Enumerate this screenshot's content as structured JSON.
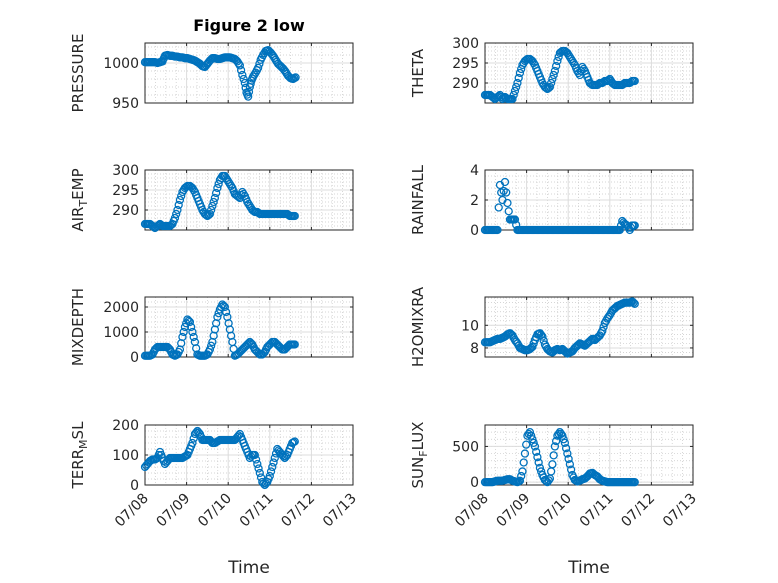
{
  "figure": {
    "title": "Figure 2 low"
  },
  "colors": {
    "series": "#0072BD",
    "axis": "#262626"
  },
  "chart_data": [
    {
      "type": "scatter",
      "title": "Figure 2 low",
      "ylabel": "PRESSURE",
      "ylim": [
        950,
        1025
      ],
      "yticks": [
        950,
        1000
      ],
      "ytick_labels": [
        "950",
        "1000"
      ],
      "xlim": [
        0,
        5
      ],
      "xticks": [
        0,
        1,
        2,
        3,
        4,
        5
      ],
      "xtick_labels": [
        "07/08",
        "07/09",
        "07/10",
        "07/11",
        "07/12",
        "07/13"
      ],
      "show_xticklabels": false,
      "xlabel": "",
      "x": [
        0,
        0.06,
        0.12,
        0.18,
        0.24,
        0.3,
        0.36,
        0.42,
        0.48,
        0.54,
        0.6,
        0.66,
        0.72,
        0.78,
        0.84,
        0.9,
        0.96,
        1.02,
        1.08,
        1.14,
        1.2,
        1.26,
        1.32,
        1.38,
        1.44,
        1.5,
        1.56,
        1.62,
        1.68,
        1.74,
        1.8,
        1.86,
        1.92,
        1.98,
        2.04,
        2.1,
        2.16,
        2.22,
        2.28,
        2.34,
        2.4,
        2.44,
        2.48,
        2.52,
        2.56,
        2.6,
        2.66,
        2.72,
        2.78,
        2.84,
        2.9,
        2.96,
        3.02,
        3.08,
        3.14,
        3.2,
        3.26,
        3.32,
        3.38,
        3.44,
        3.5,
        3.56,
        3.62
      ],
      "y": [
        1001,
        1001,
        1001,
        1001,
        1001,
        1000,
        1001,
        1002,
        1009,
        1010,
        1009,
        1009,
        1008,
        1008,
        1007,
        1007,
        1006,
        1006,
        1005,
        1004,
        1003,
        1001,
        999,
        996,
        995,
        999,
        1003,
        1006,
        1006,
        1005,
        1005,
        1006,
        1007,
        1007,
        1007,
        1006,
        1005,
        1002,
        997,
        985,
        975,
        963,
        958,
        970,
        978,
        983,
        988,
        994,
        1004,
        1010,
        1015,
        1016,
        1013,
        1009,
        1004,
        999,
        996,
        993,
        989,
        984,
        981,
        980,
        982
      ]
    },
    {
      "type": "scatter",
      "ylabel": "THETA",
      "ylim": [
        285,
        300
      ],
      "yticks": [
        290,
        295,
        300
      ],
      "ytick_labels": [
        "290",
        "295",
        "300"
      ],
      "xlim": [
        0,
        5
      ],
      "xticks": [
        0,
        1,
        2,
        3,
        4,
        5
      ],
      "xtick_labels": [
        "07/08",
        "07/09",
        "07/10",
        "07/11",
        "07/12",
        "07/13"
      ],
      "show_xticklabels": false,
      "xlabel": "",
      "x": [
        0,
        0.06,
        0.12,
        0.18,
        0.24,
        0.3,
        0.36,
        0.42,
        0.48,
        0.54,
        0.6,
        0.66,
        0.72,
        0.78,
        0.84,
        0.9,
        0.96,
        1.02,
        1.08,
        1.14,
        1.2,
        1.26,
        1.32,
        1.38,
        1.44,
        1.5,
        1.56,
        1.62,
        1.68,
        1.74,
        1.8,
        1.86,
        1.92,
        1.98,
        2.04,
        2.1,
        2.16,
        2.22,
        2.28,
        2.34,
        2.4,
        2.46,
        2.52,
        2.58,
        2.64,
        2.7,
        2.76,
        2.82,
        2.88,
        2.94,
        3.0,
        3.06,
        3.12,
        3.18,
        3.24,
        3.3,
        3.36,
        3.42,
        3.48,
        3.54,
        3.6
      ],
      "y": [
        287,
        287,
        287,
        286.5,
        286,
        286.5,
        287,
        286,
        286.5,
        286,
        286,
        286,
        288,
        290,
        292.5,
        294.5,
        295.5,
        296,
        296,
        295.5,
        294.5,
        293,
        291.5,
        290,
        289,
        288.5,
        289,
        291,
        293,
        295.5,
        297.5,
        298,
        298,
        297.5,
        296.5,
        295.5,
        294.5,
        293,
        292,
        294,
        293,
        291.5,
        290,
        289.5,
        289.5,
        289.5,
        290,
        290,
        290.5,
        290.5,
        291,
        290,
        289.5,
        289.5,
        289.5,
        289.5,
        290,
        290,
        290,
        290.5,
        290.5
      ]
    },
    {
      "type": "scatter",
      "ylabel": "AIR_TEMP",
      "ylim": [
        285,
        300
      ],
      "yticks": [
        290,
        295,
        300
      ],
      "ytick_labels": [
        "290",
        "295",
        "300"
      ],
      "xlim": [
        0,
        5
      ],
      "xticks": [
        0,
        1,
        2,
        3,
        4,
        5
      ],
      "xtick_labels": [
        "07/08",
        "07/09",
        "07/10",
        "07/11",
        "07/12",
        "07/13"
      ],
      "show_xticklabels": false,
      "xlabel": "",
      "x": [
        0,
        0.06,
        0.12,
        0.18,
        0.24,
        0.3,
        0.36,
        0.42,
        0.48,
        0.54,
        0.6,
        0.66,
        0.72,
        0.78,
        0.84,
        0.9,
        0.96,
        1.02,
        1.08,
        1.14,
        1.2,
        1.26,
        1.32,
        1.38,
        1.44,
        1.5,
        1.56,
        1.62,
        1.68,
        1.74,
        1.8,
        1.86,
        1.92,
        1.98,
        2.04,
        2.1,
        2.16,
        2.22,
        2.28,
        2.34,
        2.4,
        2.46,
        2.52,
        2.58,
        2.64,
        2.7,
        2.76,
        2.82,
        2.88,
        2.94,
        3.0,
        3.06,
        3.12,
        3.18,
        3.24,
        3.3,
        3.36,
        3.42,
        3.48,
        3.54,
        3.6
      ],
      "y": [
        286.5,
        286.5,
        286.5,
        286,
        285.5,
        286,
        286.5,
        286,
        286,
        286,
        286,
        286.5,
        288,
        290,
        292.5,
        294.5,
        295.5,
        296,
        296,
        295.5,
        294.5,
        293,
        291.5,
        290,
        289,
        288.5,
        289,
        291,
        293,
        295.5,
        297.5,
        298.5,
        298.5,
        297.5,
        296.5,
        295.5,
        294,
        293.5,
        293,
        294.5,
        293.5,
        292,
        291,
        290,
        289.5,
        289.5,
        289,
        289,
        289,
        289,
        289,
        289,
        289,
        289,
        289,
        289,
        289,
        289,
        288.5,
        288.5,
        288.5
      ]
    },
    {
      "type": "scatter",
      "ylabel": "RAINFALL",
      "ylim": [
        0,
        4
      ],
      "yticks": [
        0,
        2,
        4
      ],
      "ytick_labels": [
        "0",
        "2",
        "4"
      ],
      "xlim": [
        0,
        5
      ],
      "xticks": [
        0,
        1,
        2,
        3,
        4,
        5
      ],
      "xtick_labels": [
        "07/08",
        "07/09",
        "07/10",
        "07/11",
        "07/12",
        "07/13"
      ],
      "show_xticklabels": false,
      "xlabel": "",
      "x": [
        0,
        0.06,
        0.12,
        0.18,
        0.24,
        0.3,
        0.36,
        0.42,
        0.48,
        0.54,
        0.6,
        0.66,
        0.72,
        0.78,
        0.84,
        0.9,
        0.96,
        1.02,
        1.08,
        1.14,
        1.2,
        1.26,
        1.32,
        1.38,
        1.44,
        1.5,
        1.56,
        1.62,
        1.68,
        1.74,
        1.8,
        1.86,
        1.92,
        1.98,
        2.04,
        2.1,
        2.16,
        2.22,
        2.28,
        2.34,
        2.4,
        2.46,
        2.52,
        2.58,
        2.64,
        2.7,
        2.76,
        2.82,
        2.88,
        2.94,
        3.0,
        3.06,
        3.12,
        3.18,
        3.24,
        3.3,
        3.36,
        3.42,
        3.48,
        3.54,
        3.6
      ],
      "y": [
        0,
        0,
        0,
        0,
        0,
        0,
        3.0,
        2.0,
        3.2,
        1.8,
        0.7,
        0.7,
        0.7,
        0,
        0,
        0,
        0,
        0,
        0,
        0,
        0,
        0,
        0,
        0,
        0,
        0,
        0,
        0,
        0,
        0,
        0,
        0,
        0,
        0,
        0,
        0,
        0,
        0,
        0,
        0,
        0,
        0,
        0,
        0,
        0,
        0,
        0,
        0,
        0,
        0,
        0,
        0,
        0,
        0,
        0,
        0.6,
        0.4,
        0.3,
        0,
        0.3,
        0.3
      ]
    },
    {
      "type": "scatter",
      "ylabel": "MIXDEPTH",
      "ylim": [
        0,
        2400
      ],
      "yticks": [
        0,
        1000,
        2000
      ],
      "ytick_labels": [
        "0",
        "1000",
        "2000"
      ],
      "xlim": [
        0,
        5
      ],
      "xticks": [
        0,
        1,
        2,
        3,
        4,
        5
      ],
      "xtick_labels": [
        "07/08",
        "07/09",
        "07/10",
        "07/11",
        "07/12",
        "07/13"
      ],
      "show_xticklabels": false,
      "xlabel": "",
      "x": [
        0,
        0.06,
        0.12,
        0.18,
        0.24,
        0.3,
        0.36,
        0.42,
        0.48,
        0.54,
        0.6,
        0.66,
        0.72,
        0.78,
        0.84,
        0.9,
        0.96,
        1.02,
        1.08,
        1.14,
        1.2,
        1.26,
        1.32,
        1.38,
        1.44,
        1.5,
        1.56,
        1.62,
        1.68,
        1.74,
        1.8,
        1.86,
        1.92,
        1.98,
        2.04,
        2.1,
        2.16,
        2.22,
        2.28,
        2.34,
        2.4,
        2.46,
        2.52,
        2.58,
        2.64,
        2.7,
        2.76,
        2.82,
        2.88,
        2.94,
        3.0,
        3.06,
        3.12,
        3.18,
        3.24,
        3.3,
        3.36,
        3.42,
        3.48,
        3.54,
        3.6
      ],
      "y": [
        50,
        50,
        50,
        100,
        300,
        400,
        400,
        400,
        400,
        400,
        300,
        100,
        50,
        100,
        300,
        800,
        1200,
        1500,
        1400,
        1000,
        600,
        100,
        50,
        50,
        50,
        100,
        300,
        600,
        1100,
        1600,
        1900,
        2100,
        2000,
        1600,
        1100,
        600,
        50,
        100,
        200,
        300,
        400,
        500,
        600,
        500,
        300,
        200,
        100,
        100,
        200,
        400,
        500,
        600,
        600,
        500,
        400,
        300,
        300,
        400,
        500,
        500,
        500
      ]
    },
    {
      "type": "scatter",
      "ylabel": "H2OMIXRA",
      "ylim": [
        7.2,
        12.5
      ],
      "yticks": [
        8,
        10
      ],
      "ytick_labels": [
        "8",
        "10"
      ],
      "xlim": [
        0,
        5
      ],
      "xticks": [
        0,
        1,
        2,
        3,
        4,
        5
      ],
      "xtick_labels": [
        "07/08",
        "07/09",
        "07/10",
        "07/11",
        "07/12",
        "07/13"
      ],
      "show_xticklabels": false,
      "xlabel": "",
      "x": [
        0,
        0.06,
        0.12,
        0.18,
        0.24,
        0.3,
        0.36,
        0.42,
        0.48,
        0.54,
        0.6,
        0.66,
        0.72,
        0.78,
        0.84,
        0.9,
        0.96,
        1.02,
        1.08,
        1.14,
        1.2,
        1.26,
        1.32,
        1.38,
        1.44,
        1.5,
        1.56,
        1.62,
        1.68,
        1.74,
        1.8,
        1.86,
        1.92,
        1.98,
        2.04,
        2.1,
        2.16,
        2.22,
        2.28,
        2.34,
        2.4,
        2.46,
        2.52,
        2.58,
        2.64,
        2.7,
        2.76,
        2.82,
        2.88,
        2.94,
        3.0,
        3.06,
        3.12,
        3.18,
        3.24,
        3.3,
        3.36,
        3.42,
        3.48,
        3.54,
        3.6
      ],
      "y": [
        8.5,
        8.5,
        8.5,
        8.6,
        8.7,
        8.8,
        8.8,
        8.9,
        9.0,
        9.2,
        9.3,
        9.1,
        8.7,
        8.4,
        8.0,
        7.9,
        7.8,
        7.8,
        7.9,
        8.1,
        8.7,
        9.2,
        9.3,
        9.0,
        8.3,
        7.9,
        7.7,
        7.6,
        7.8,
        7.9,
        7.8,
        7.9,
        7.7,
        7.5,
        7.6,
        7.7,
        8.0,
        8.2,
        8.4,
        8.3,
        8.2,
        8.4,
        8.6,
        8.8,
        8.7,
        8.9,
        9.1,
        9.5,
        10.2,
        10.6,
        10.9,
        11.3,
        11.5,
        11.7,
        11.8,
        11.9,
        12.0,
        12.0,
        12.0,
        12.1,
        11.9
      ]
    },
    {
      "type": "scatter",
      "ylabel": "TERR_MSL",
      "ylim": [
        0,
        200
      ],
      "yticks": [
        0,
        100,
        200
      ],
      "ytick_labels": [
        "0",
        "100",
        "200"
      ],
      "xlim": [
        0,
        5
      ],
      "xticks": [
        0,
        1,
        2,
        3,
        4,
        5
      ],
      "xtick_labels": [
        "07/08",
        "07/09",
        "07/10",
        "07/11",
        "07/12",
        "07/13"
      ],
      "show_xticklabels": true,
      "xlabel": "Time",
      "x": [
        0,
        0.06,
        0.12,
        0.18,
        0.24,
        0.3,
        0.36,
        0.42,
        0.48,
        0.54,
        0.6,
        0.66,
        0.72,
        0.78,
        0.84,
        0.9,
        0.96,
        1.02,
        1.08,
        1.14,
        1.2,
        1.26,
        1.32,
        1.38,
        1.44,
        1.5,
        1.56,
        1.62,
        1.68,
        1.74,
        1.8,
        1.86,
        1.92,
        1.98,
        2.04,
        2.1,
        2.16,
        2.22,
        2.28,
        2.34,
        2.4,
        2.46,
        2.52,
        2.58,
        2.64,
        2.7,
        2.76,
        2.82,
        2.88,
        2.94,
        3.0,
        3.06,
        3.12,
        3.18,
        3.24,
        3.3,
        3.36,
        3.42,
        3.48,
        3.54,
        3.6
      ],
      "y": [
        60,
        70,
        80,
        85,
        85,
        90,
        110,
        90,
        70,
        80,
        90,
        90,
        90,
        90,
        90,
        90,
        95,
        100,
        120,
        140,
        170,
        180,
        170,
        150,
        150,
        150,
        150,
        140,
        140,
        145,
        150,
        150,
        150,
        150,
        150,
        150,
        150,
        160,
        170,
        150,
        130,
        110,
        90,
        100,
        100,
        70,
        40,
        10,
        0,
        10,
        30,
        60,
        90,
        120,
        110,
        100,
        90,
        100,
        120,
        140,
        145
      ]
    },
    {
      "type": "scatter",
      "ylabel": "SUN_FLUX",
      "ylim": [
        -40,
        800
      ],
      "yticks": [
        0,
        500
      ],
      "ytick_labels": [
        "0",
        "500"
      ],
      "xlim": [
        0,
        5
      ],
      "xticks": [
        0,
        1,
        2,
        3,
        4,
        5
      ],
      "xtick_labels": [
        "07/08",
        "07/09",
        "07/10",
        "07/11",
        "07/12",
        "07/13"
      ],
      "show_xticklabels": true,
      "xlabel": "Time",
      "x": [
        0,
        0.06,
        0.12,
        0.18,
        0.24,
        0.3,
        0.36,
        0.42,
        0.48,
        0.54,
        0.6,
        0.66,
        0.72,
        0.78,
        0.84,
        0.9,
        0.96,
        1.02,
        1.08,
        1.14,
        1.2,
        1.26,
        1.32,
        1.38,
        1.44,
        1.5,
        1.56,
        1.62,
        1.68,
        1.74,
        1.8,
        1.86,
        1.92,
        1.98,
        2.04,
        2.1,
        2.16,
        2.22,
        2.28,
        2.34,
        2.4,
        2.46,
        2.52,
        2.58,
        2.64,
        2.7,
        2.76,
        2.82,
        2.88,
        2.94,
        3.0,
        3.06,
        3.12,
        3.18,
        3.24,
        3.3,
        3.36,
        3.42,
        3.48,
        3.54,
        3.6
      ],
      "y": [
        0,
        0,
        0,
        0,
        10,
        20,
        20,
        20,
        30,
        40,
        40,
        20,
        10,
        0,
        20,
        150,
        400,
        650,
        700,
        600,
        500,
        350,
        200,
        100,
        30,
        0,
        50,
        250,
        500,
        650,
        700,
        650,
        550,
        400,
        250,
        100,
        30,
        10,
        20,
        40,
        50,
        80,
        120,
        130,
        100,
        80,
        40,
        20,
        10,
        0,
        0,
        0,
        0,
        0,
        0,
        0,
        0,
        0,
        0,
        0,
        0
      ]
    }
  ]
}
